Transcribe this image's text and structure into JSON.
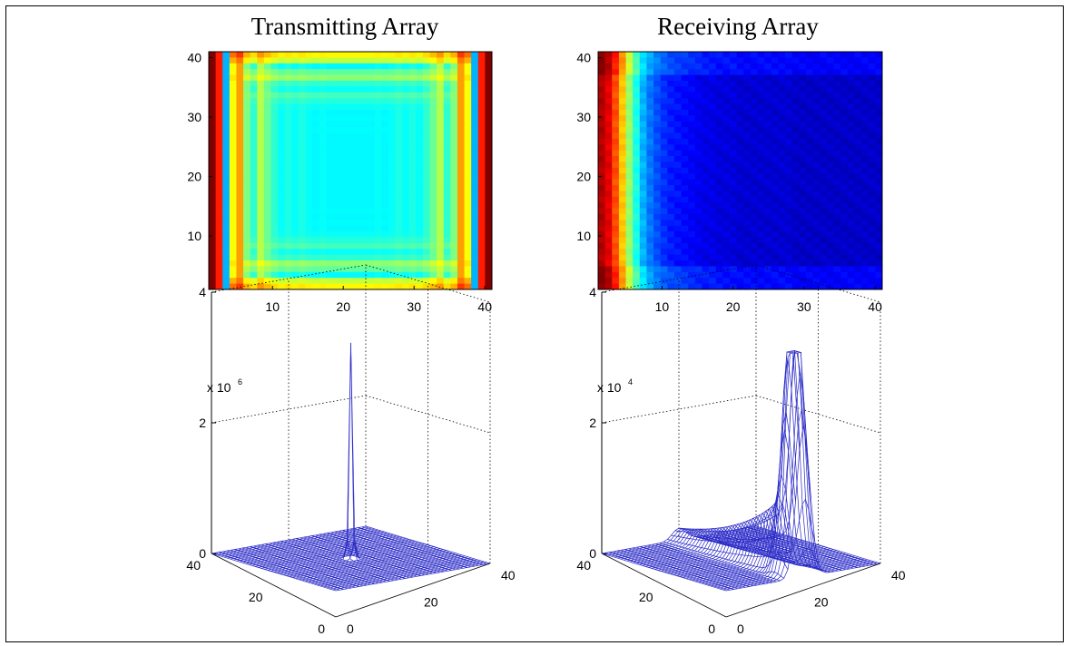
{
  "chart_data": [
    {
      "type": "heatmap",
      "title": "Transmitting Array",
      "grid_size": 41,
      "xticks": [
        "10",
        "20",
        "30",
        "40"
      ],
      "yticks": [
        "10",
        "20",
        "30",
        "40"
      ],
      "xlim": [
        1,
        41
      ],
      "ylim": [
        1,
        41
      ],
      "colormap": "jet",
      "description_values": {
        "column_profile": [
          1.0,
          0.85,
          0.3,
          0.62,
          0.72,
          0.5,
          0.42,
          0.55,
          0.48,
          0.42,
          0.38,
          0.4,
          0.38,
          0.4,
          0.38,
          0.37,
          0.38,
          0.37,
          0.37,
          0.37,
          0.37,
          0.37,
          0.37,
          0.37,
          0.38,
          0.37,
          0.38,
          0.4,
          0.38,
          0.4,
          0.38,
          0.42,
          0.48,
          0.55,
          0.42,
          0.5,
          0.72,
          0.62,
          0.3,
          0.85,
          1.0
        ]
      }
    },
    {
      "type": "heatmap",
      "title": "Receiving Array",
      "grid_size": 41,
      "xticks": [
        "10",
        "20",
        "30",
        "40"
      ],
      "yticks": [
        "10",
        "20",
        "30",
        "40"
      ],
      "xlim": [
        1,
        41
      ],
      "ylim": [
        1,
        41
      ],
      "colormap": "jet",
      "description_values": {
        "column_profile": [
          0.95,
          0.9,
          0.8,
          0.68,
          0.52,
          0.4,
          0.3,
          0.24,
          0.2,
          0.17,
          0.15,
          0.14,
          0.13,
          0.12,
          0.11,
          0.1,
          0.1,
          0.09,
          0.09,
          0.09,
          0.08,
          0.08,
          0.08,
          0.08,
          0.08,
          0.08,
          0.08,
          0.08,
          0.07,
          0.07,
          0.07,
          0.07,
          0.07,
          0.07,
          0.07,
          0.07,
          0.07,
          0.07,
          0.07,
          0.07,
          0.07
        ]
      }
    },
    {
      "type": "surface3d",
      "scale_label": "x 10",
      "scale_exp": "6",
      "zticks": [
        "0",
        "2",
        "4"
      ],
      "zlim": [
        0,
        4
      ],
      "left_axis_ticks": [
        "40",
        "20",
        "0"
      ],
      "right_axis_ticks": [
        "0",
        "20",
        "40"
      ],
      "peak_value": 3.3,
      "peak_location": "center"
    },
    {
      "type": "surface3d",
      "scale_label": "x 10",
      "scale_exp": "4",
      "zticks": [
        "0",
        "2",
        "4"
      ],
      "zlim": [
        0,
        4
      ],
      "left_axis_ticks": [
        "40",
        "20",
        "0"
      ],
      "right_axis_ticks": [
        "0",
        "20",
        "40"
      ],
      "peak_value": 3.4,
      "peak_location": "edge"
    }
  ]
}
